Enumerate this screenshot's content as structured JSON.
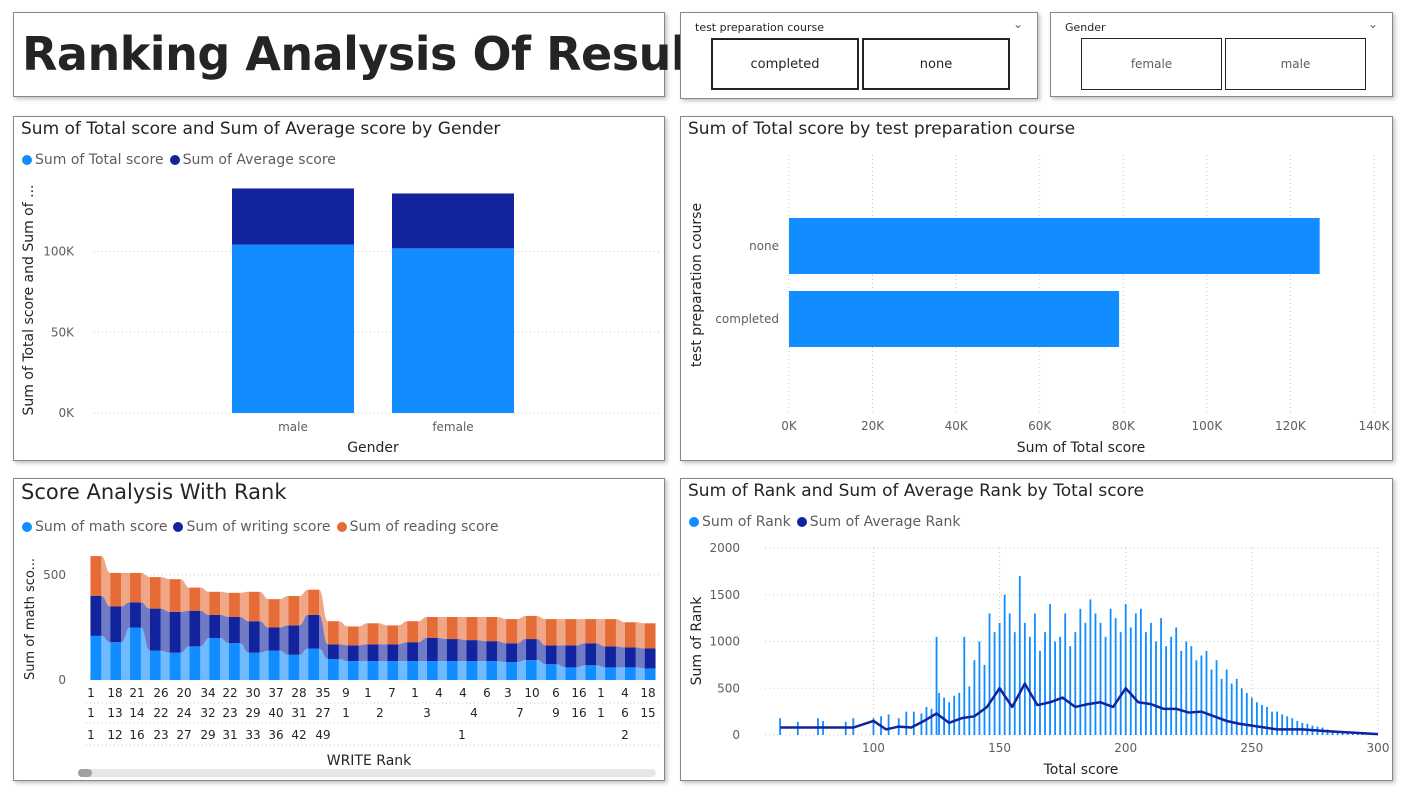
{
  "page": {
    "title": "Ranking Analysis Of Result"
  },
  "slicer_prep": {
    "label": "test preparation course",
    "options": [
      "completed",
      "none"
    ]
  },
  "slicer_gender": {
    "label": "Gender",
    "options": [
      "female",
      "male"
    ]
  },
  "colors": {
    "light_blue": "#118DFF",
    "dark_blue": "#12239E",
    "orange": "#E66C37",
    "axis_text": "#605e5c",
    "grid": "#c8c6c4"
  },
  "icons": {
    "chevron": "chevron-down-icon"
  },
  "chart1": {
    "title": "Sum of Total score and Sum of Average score by Gender",
    "legend": [
      "Sum of Total score",
      "Sum of Average score"
    ],
    "xlabel": "Gender",
    "ylabel": "Sum of Total score and Sum of ...",
    "ticks": [
      "0K",
      "50K",
      "100K"
    ]
  },
  "chart2": {
    "title": "Sum of Total score by test preparation course",
    "xlabel": "Sum of Total score",
    "ylabel": "test preparation course",
    "ticks": [
      "0K",
      "20K",
      "40K",
      "60K",
      "80K",
      "100K",
      "120K",
      "140K"
    ]
  },
  "chart3": {
    "title": "Score Analysis With Rank",
    "legend": [
      "Sum of math score",
      "Sum of writing score",
      "Sum of reading score"
    ],
    "xlabel": "WRITE Rank",
    "ylabel": "Sum of math sco...",
    "ticks": [
      "0",
      "500"
    ],
    "row1": [
      "1",
      "18",
      "21",
      "26",
      "20",
      "34",
      "22",
      "30",
      "37",
      "28",
      "35",
      "9",
      "1",
      "7",
      "1",
      "4",
      "4",
      "6",
      "3",
      "10",
      "6",
      "16",
      "1",
      "4",
      "18"
    ],
    "row2": [
      "1",
      "13",
      "14",
      "22",
      "24",
      "32",
      "23",
      "29",
      "40",
      "31",
      "27",
      "1",
      "2",
      "3",
      "4",
      "7",
      "9",
      "16",
      "1",
      "6",
      "15"
    ],
    "row3": [
      "1",
      "12",
      "16",
      "23",
      "27",
      "29",
      "31",
      "33",
      "36",
      "42",
      "49",
      "1",
      "2"
    ]
  },
  "chart4": {
    "title": "Sum of Rank and Sum of Average Rank by Total score",
    "legend": [
      "Sum of Rank",
      "Sum of Average Rank"
    ],
    "xlabel": "Total score",
    "ylabel": "Sum of Rank",
    "yticks": [
      "0",
      "500",
      "1000",
      "1500",
      "2000"
    ],
    "xticks": [
      "100",
      "150",
      "200",
      "250",
      "300"
    ]
  },
  "chart_data": [
    {
      "type": "bar",
      "title": "Sum of Total score and Sum of Average score by Gender",
      "categories": [
        "male",
        "female"
      ],
      "series": [
        {
          "name": "Sum of Total score",
          "values": [
            104300,
            102000
          ]
        },
        {
          "name": "Sum of Average score",
          "values": [
            34800,
            34000
          ]
        }
      ],
      "stacked": true,
      "xlabel": "Gender",
      "ylabel": "Sum of Total score and Sum of ...",
      "ylim": [
        0,
        140000
      ]
    },
    {
      "type": "bar",
      "orientation": "horizontal",
      "title": "Sum of Total score by test preparation course",
      "categories": [
        "none",
        "completed"
      ],
      "values": [
        127000,
        79000
      ],
      "xlabel": "Sum of Total score",
      "ylabel": "test preparation course",
      "xlim": [
        0,
        140000
      ]
    },
    {
      "type": "area",
      "title": "Score Analysis With Rank",
      "xlabel": "WRITE Rank",
      "ylabel": "Sum of math sco...",
      "ylim": [
        0,
        600
      ],
      "x_count": 29,
      "series": [
        {
          "name": "Sum of math score",
          "values": [
            210,
            180,
            250,
            140,
            130,
            160,
            200,
            175,
            130,
            140,
            120,
            150,
            100,
            90,
            90,
            90,
            90,
            90,
            90,
            90,
            90,
            85,
            95,
            75,
            60,
            70,
            60,
            60,
            55
          ]
        },
        {
          "name": "Sum of writing score",
          "values": [
            190,
            170,
            120,
            200,
            195,
            170,
            110,
            125,
            150,
            110,
            140,
            160,
            70,
            75,
            80,
            80,
            90,
            110,
            105,
            100,
            95,
            90,
            100,
            90,
            105,
            105,
            100,
            95,
            95
          ]
        },
        {
          "name": "Sum of reading score",
          "values": [
            190,
            160,
            140,
            150,
            155,
            110,
            110,
            115,
            140,
            135,
            140,
            120,
            110,
            90,
            100,
            90,
            100,
            100,
            105,
            110,
            115,
            115,
            110,
            125,
            125,
            115,
            130,
            120,
            120
          ]
        }
      ]
    },
    {
      "type": "bar",
      "title": "Sum of Rank and Sum of Average Rank by Total score",
      "xlabel": "Total score",
      "ylabel": "Sum of Rank",
      "xlim": [
        57,
        300
      ],
      "ylim": [
        0,
        2000
      ],
      "series": [
        {
          "name": "Sum of Rank",
          "x": [
            63,
            70,
            78,
            80,
            89,
            92,
            100,
            103,
            106,
            110,
            113,
            116,
            119,
            121,
            123,
            125,
            126,
            128,
            130,
            132,
            134,
            136,
            138,
            140,
            142,
            144,
            146,
            148,
            150,
            152,
            154,
            156,
            158,
            160,
            162,
            164,
            166,
            168,
            170,
            172,
            174,
            176,
            178,
            180,
            182,
            184,
            186,
            188,
            190,
            192,
            194,
            196,
            198,
            200,
            202,
            204,
            206,
            208,
            210,
            212,
            214,
            216,
            218,
            220,
            222,
            224,
            226,
            228,
            230,
            232,
            234,
            236,
            238,
            240,
            242,
            244,
            246,
            248,
            250,
            252,
            254,
            256,
            258,
            260,
            262,
            264,
            266,
            268,
            270,
            272,
            274,
            276,
            278,
            280,
            282,
            284,
            286,
            288,
            290,
            292,
            294,
            296,
            298
          ],
          "values": [
            180,
            140,
            180,
            150,
            140,
            180,
            180,
            200,
            220,
            180,
            250,
            250,
            230,
            300,
            280,
            1050,
            450,
            400,
            350,
            420,
            450,
            1050,
            520,
            800,
            1000,
            750,
            1300,
            1100,
            1200,
            1500,
            1300,
            1100,
            1700,
            1200,
            1050,
            1300,
            900,
            1100,
            1400,
            1000,
            1050,
            1300,
            950,
            1100,
            1350,
            1200,
            1450,
            1300,
            1200,
            1050,
            1350,
            1250,
            1100,
            1400,
            1150,
            1300,
            1350,
            1100,
            1200,
            1000,
            1250,
            950,
            1050,
            1150,
            900,
            1000,
            950,
            800,
            850,
            900,
            700,
            800,
            600,
            700,
            550,
            600,
            500,
            450,
            400,
            350,
            320,
            300,
            250,
            250,
            220,
            200,
            180,
            150,
            130,
            120,
            100,
            90,
            80,
            60,
            50,
            40,
            30,
            25,
            20,
            15,
            12,
            10,
            8
          ]
        },
        {
          "name": "Sum of Average Rank",
          "x": [
            63,
            80,
            92,
            100,
            105,
            110,
            115,
            120,
            125,
            130,
            135,
            140,
            145,
            150,
            155,
            160,
            165,
            170,
            175,
            180,
            185,
            190,
            195,
            200,
            205,
            210,
            215,
            220,
            225,
            230,
            235,
            240,
            245,
            250,
            255,
            260,
            270,
            280,
            290,
            300
          ],
          "values": [
            80,
            80,
            80,
            150,
            60,
            90,
            80,
            150,
            230,
            130,
            180,
            200,
            300,
            500,
            300,
            550,
            320,
            350,
            400,
            300,
            330,
            350,
            300,
            500,
            350,
            330,
            280,
            280,
            240,
            250,
            200,
            150,
            120,
            100,
            80,
            60,
            60,
            40,
            25,
            10
          ]
        }
      ]
    }
  ]
}
